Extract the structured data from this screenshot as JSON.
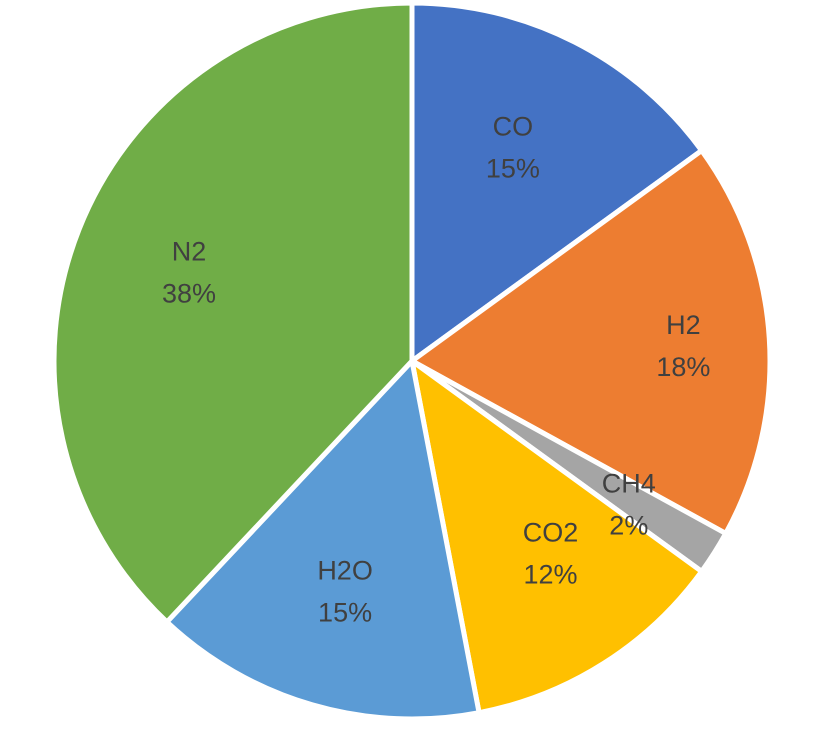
{
  "chart_data": {
    "type": "pie",
    "slices": [
      {
        "name": "CO",
        "value": 15,
        "pct_label": "15%",
        "color": "#4472C4"
      },
      {
        "name": "H2",
        "value": 18,
        "pct_label": "18%",
        "color": "#ED7D31"
      },
      {
        "name": "CH4",
        "value": 2,
        "pct_label": "2%",
        "color": "#A5A5A5"
      },
      {
        "name": "CO2",
        "value": 12,
        "pct_label": "12%",
        "color": "#FFC000"
      },
      {
        "name": "H2O",
        "value": 15,
        "pct_label": "15%",
        "color": "#5B9BD5"
      },
      {
        "name": "N2",
        "value": 38,
        "pct_label": "38%",
        "color": "#70AD47"
      }
    ],
    "start": "12 o'clock",
    "direction": "clockwise",
    "label_color": "#404040",
    "legend": "none"
  }
}
